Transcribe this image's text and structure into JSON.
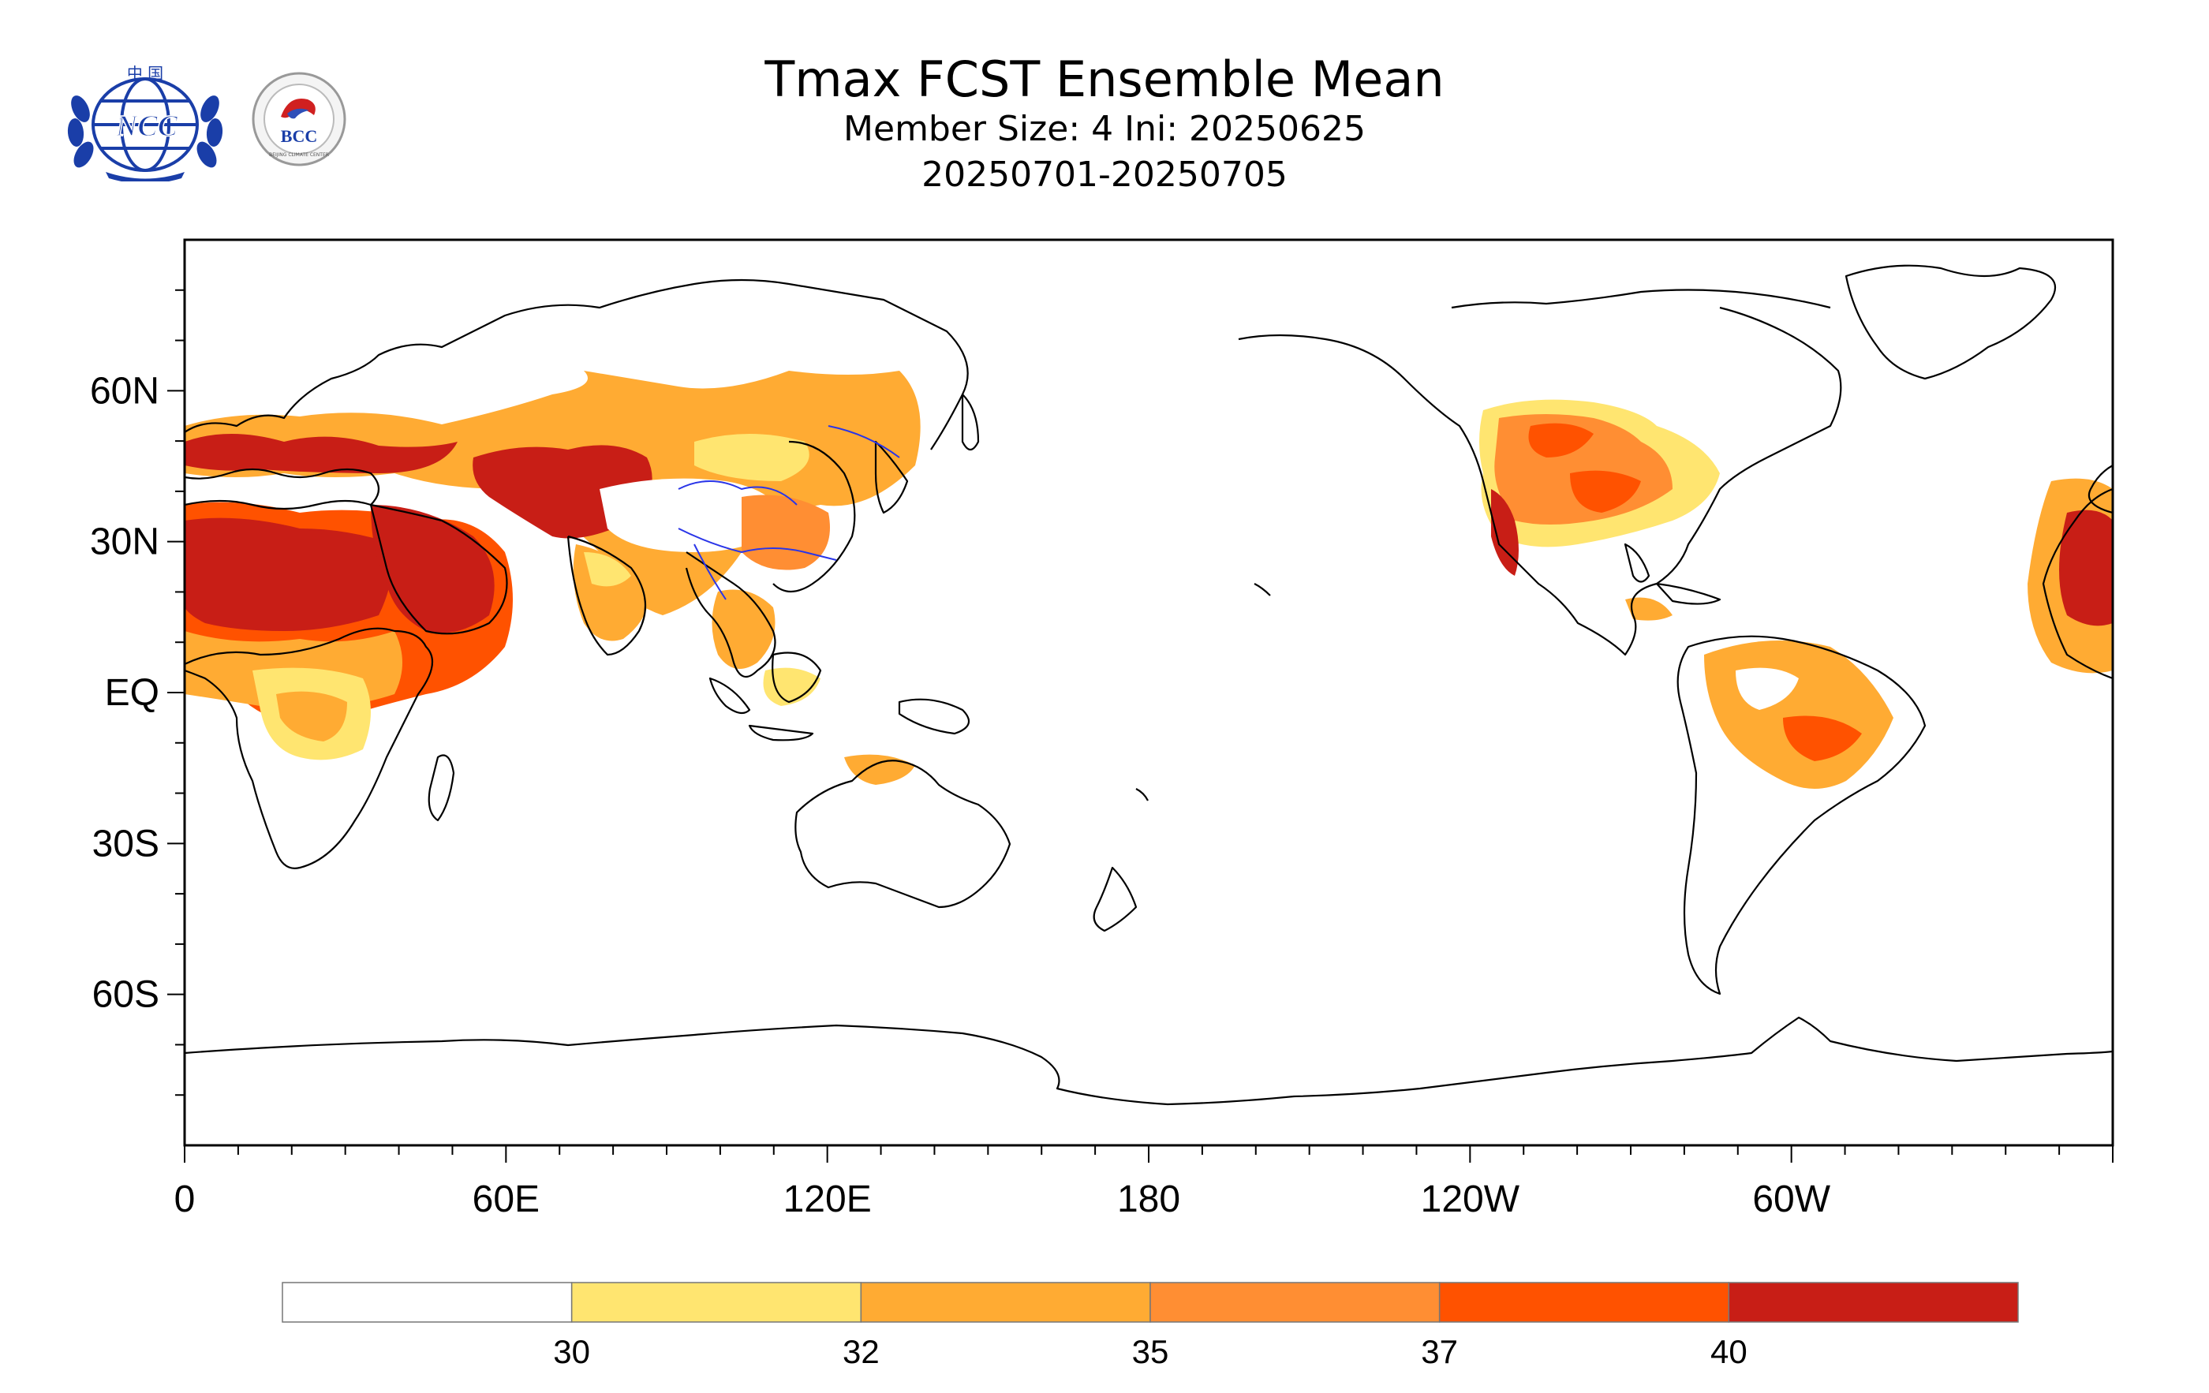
{
  "header": {
    "title": "Tmax FCST Ensemble Mean",
    "subtitle": "Member Size: 4  Ini: 20250625",
    "period": "20250701-20250705"
  },
  "logos": {
    "ncc_text": "NCC",
    "ncc_top_text": "中 国",
    "bcc_text": "BCC",
    "bcc_ring_text": "BEIJING CLIMATE CENTER"
  },
  "map": {
    "projection": "cylindrical equidistant",
    "lon_range": [
      0,
      360
    ],
    "lat_range": [
      -90,
      90
    ],
    "lat_ticks": [
      {
        "lat": 60,
        "label": "60N"
      },
      {
        "lat": 30,
        "label": "30N"
      },
      {
        "lat": 0,
        "label": "EQ"
      },
      {
        "lat": -30,
        "label": "30S"
      },
      {
        "lat": -60,
        "label": "60S"
      }
    ],
    "lon_ticks": [
      {
        "lon": 0,
        "label": "0"
      },
      {
        "lon": 60,
        "label": "60E"
      },
      {
        "lon": 120,
        "label": "120E"
      },
      {
        "lon": 180,
        "label": "180"
      },
      {
        "lon": 240,
        "label": "120W"
      },
      {
        "lon": 300,
        "label": "60W"
      }
    ]
  },
  "legend": {
    "colors": [
      "#ffffff",
      "#ffe570",
      "#ffab33",
      "#ff8e33",
      "#ff5200",
      "#c81e16"
    ],
    "boundaries": [
      "30",
      "32",
      "35",
      "37",
      "40"
    ]
  }
}
